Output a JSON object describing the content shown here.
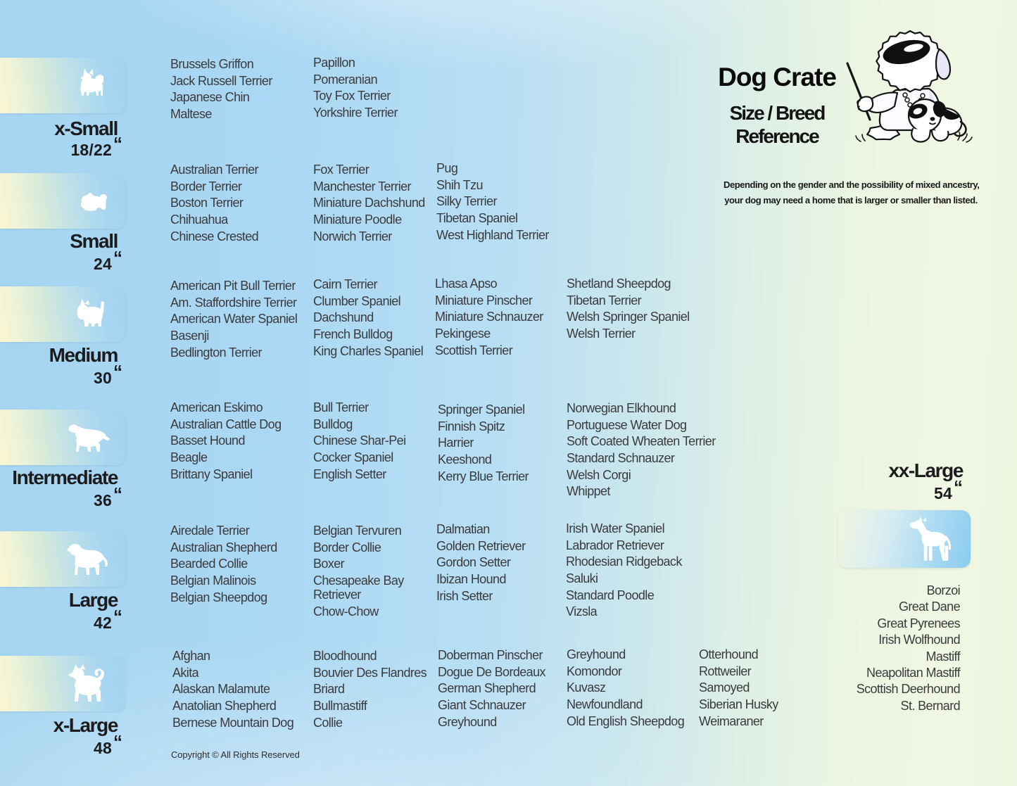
{
  "header": {
    "title": "Dog Crate",
    "subtitle_line1": "Size / Breed",
    "subtitle_line2": "Reference",
    "disclaimer_line1": "Depending on the gender and the possibility of mixed ancestry,",
    "disclaimer_line2": "your dog may need  a home that is larger or smaller than listed.",
    "mascot_icon": "teacher-dog-with-puppy-illustration"
  },
  "sizes": [
    {
      "name": "x-Small",
      "dimension": "18/22",
      "inch_mark": "“",
      "icon": "papillon-silhouette"
    },
    {
      "name": "Small",
      "dimension": "24",
      "inch_mark": "“",
      "icon": "shih-tzu-silhouette"
    },
    {
      "name": "Medium",
      "dimension": "30",
      "inch_mark": "“",
      "icon": "westie-silhouette"
    },
    {
      "name": "Intermediate",
      "dimension": "36",
      "inch_mark": "“",
      "icon": "spaniel-silhouette"
    },
    {
      "name": "Large",
      "dimension": "42",
      "inch_mark": "“",
      "icon": "retriever-silhouette"
    },
    {
      "name": "x-Large",
      "dimension": "48",
      "inch_mark": "“",
      "icon": "akita-silhouette"
    },
    {
      "name": "xx-Large",
      "dimension": "54",
      "inch_mark": "“",
      "icon": "great-dane-silhouette"
    }
  ],
  "groups": [
    {
      "size": "x-Small",
      "columns": [
        [
          "Brussels Griffon",
          "Jack Russell Terrier",
          "Japanese Chin",
          "Maltese"
        ],
        [
          "Papillon",
          "Pomeranian",
          "Toy Fox Terrier",
          "Yorkshire Terrier"
        ]
      ]
    },
    {
      "size": "Small",
      "columns": [
        [
          "Australian Terrier",
          "Border Terrier",
          "Boston Terrier",
          "Chihuahua",
          "Chinese Crested"
        ],
        [
          "Fox Terrier",
          "Manchester Terrier",
          "Miniature Dachshund",
          "Miniature Poodle",
          "Norwich Terrier"
        ],
        [
          "Pug",
          "Shih Tzu",
          "Silky Terrier",
          "Tibetan Spaniel",
          "West Highland Terrier"
        ]
      ]
    },
    {
      "size": "Medium",
      "columns": [
        [
          "American Pit Bull Terrier",
          "Am. Staffordshire Terrier",
          "American Water Spaniel",
          "Basenji",
          "Bedlington Terrier"
        ],
        [
          "Cairn Terrier",
          "Clumber Spaniel",
          "Dachshund",
          "French Bulldog",
          "King Charles Spaniel"
        ],
        [
          "Lhasa Apso",
          "Miniature Pinscher",
          "Miniature Schnauzer",
          "Pekingese",
          "Scottish Terrier"
        ],
        [
          "Shetland Sheepdog",
          "Tibetan Terrier",
          "Welsh Springer Spaniel",
          "Welsh Terrier"
        ]
      ]
    },
    {
      "size": "Intermediate",
      "columns": [
        [
          "American Eskimo",
          "Australian Cattle Dog",
          "Basset Hound",
          "Beagle",
          "Brittany Spaniel"
        ],
        [
          "Bull Terrier",
          "Bulldog",
          "Chinese Shar-Pei",
          "Cocker Spaniel",
          "English Setter"
        ],
        [
          "Springer Spaniel",
          "Finnish Spitz",
          "Harrier",
          "Keeshond",
          "Kerry Blue Terrier"
        ],
        [
          "Norwegian Elkhound",
          "Portuguese Water Dog",
          "Soft Coated Wheaten Terrier",
          "Standard Schnauzer",
          "Welsh Corgi",
          "Whippet"
        ]
      ]
    },
    {
      "size": "Large",
      "columns": [
        [
          "Airedale Terrier",
          "Australian Shepherd",
          "Bearded Collie",
          "Belgian Malinois",
          "Belgian Sheepdog"
        ],
        [
          "Belgian Tervuren",
          "Border Collie",
          "Boxer",
          "Chesapeake Bay Retriever",
          "Chow-Chow"
        ],
        [
          "Dalmatian",
          "Golden Retriever",
          "Gordon Setter",
          "Ibizan Hound",
          "Irish Setter"
        ],
        [
          "Irish Water Spaniel",
          "Labrador Retriever",
          "Rhodesian Ridgeback",
          "Saluki",
          "Standard Poodle",
          "Vizsla"
        ]
      ]
    },
    {
      "size": "x-Large",
      "columns": [
        [
          "Afghan",
          "Akita",
          "Alaskan Malamute",
          "Anatolian Shepherd",
          "Bernese Mountain Dog"
        ],
        [
          "Bloodhound",
          "Bouvier Des Flandres",
          "Briard",
          "Bullmastiff",
          "Collie"
        ],
        [
          "Doberman Pinscher",
          "Dogue De Bordeaux",
          "German Shepherd",
          "Giant Schnauzer",
          "Greyhound"
        ],
        [
          "Greyhound",
          "Komondor",
          "Kuvasz",
          "Newfoundland",
          "Old English Sheepdog"
        ],
        [
          "Otterhound",
          "Rottweiler",
          "Samoyed",
          "Siberian Husky",
          "Weimaraner"
        ]
      ]
    },
    {
      "size": "xx-Large",
      "columns": [
        [
          "Borzoi",
          "Great Dane",
          "Great Pyrenees",
          "Irish Wolfhound",
          "Mastiff",
          "Neapolitan Mastiff",
          "Scottish Deerhound",
          "St. Bernard"
        ]
      ]
    }
  ],
  "footer": {
    "copyright": "Copyright © All Rights Reserved"
  },
  "colors": {
    "background_blue": "#abd8f3",
    "background_green": "#eef6e1",
    "badge_yellow": "#fcf6cb",
    "badge_blue": "#a4d4f0",
    "text_dark": "#1c1c1e",
    "text_breed": "#3b3b3d"
  }
}
